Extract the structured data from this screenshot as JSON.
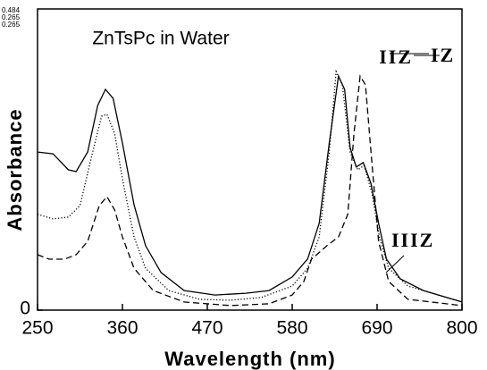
{
  "chart_data": {
    "type": "line",
    "title": "ZnTsPc in Water",
    "x_label": "Wavelength (nm)",
    "y_label": "Absorbance",
    "annotations": [
      "0.484",
      "0.265",
      "0.265"
    ],
    "xlim": [
      250,
      800
    ],
    "xticks": [
      250,
      360,
      470,
      580,
      690,
      800
    ],
    "ylim": [
      0,
      1
    ],
    "yticks": [
      0
    ],
    "series": [
      {
        "name": "IIZ",
        "color": "#000000",
        "style": "solid",
        "x": [
          250,
          270,
          290,
          300,
          315,
          328,
          338,
          348,
          360,
          375,
          390,
          410,
          440,
          480,
          520,
          550,
          580,
          600,
          615,
          628,
          640,
          648,
          655,
          663,
          672,
          682,
          692,
          702,
          720,
          750,
          800
        ],
        "values": [
          0.525,
          0.519,
          0.466,
          0.46,
          0.525,
          0.68,
          0.733,
          0.703,
          0.555,
          0.35,
          0.214,
          0.125,
          0.065,
          0.05,
          0.056,
          0.065,
          0.11,
          0.17,
          0.288,
          0.555,
          0.777,
          0.733,
          0.54,
          0.475,
          0.49,
          0.421,
          0.288,
          0.17,
          0.104,
          0.065,
          0.027
        ]
      },
      {
        "name": "IZ",
        "color": "#000000",
        "style": "dashed",
        "x": [
          250,
          265,
          285,
          300,
          315,
          330,
          340,
          350,
          360,
          375,
          400,
          440,
          500,
          550,
          580,
          595,
          605,
          625,
          640,
          652,
          660,
          668,
          675,
          683,
          692,
          705,
          730,
          800
        ],
        "values": [
          0.184,
          0.169,
          0.169,
          0.184,
          0.228,
          0.347,
          0.377,
          0.332,
          0.243,
          0.139,
          0.065,
          0.027,
          0.015,
          0.021,
          0.05,
          0.095,
          0.169,
          0.214,
          0.243,
          0.318,
          0.585,
          0.777,
          0.748,
          0.496,
          0.228,
          0.095,
          0.036,
          0.015
        ]
      },
      {
        "name": "IIIZ",
        "color": "#000000",
        "style": "dotted",
        "x": [
          250,
          270,
          290,
          305,
          320,
          333,
          340,
          350,
          360,
          375,
          390,
          420,
          460,
          500,
          540,
          580,
          600,
          615,
          628,
          637,
          645,
          655,
          665,
          673,
          683,
          693,
          705,
          730,
          800
        ],
        "values": [
          0.318,
          0.303,
          0.309,
          0.347,
          0.51,
          0.644,
          0.65,
          0.585,
          0.436,
          0.243,
          0.139,
          0.065,
          0.036,
          0.033,
          0.042,
          0.08,
          0.139,
          0.243,
          0.525,
          0.792,
          0.748,
          0.525,
          0.466,
          0.48,
          0.392,
          0.243,
          0.139,
          0.08,
          0.027
        ]
      }
    ]
  }
}
